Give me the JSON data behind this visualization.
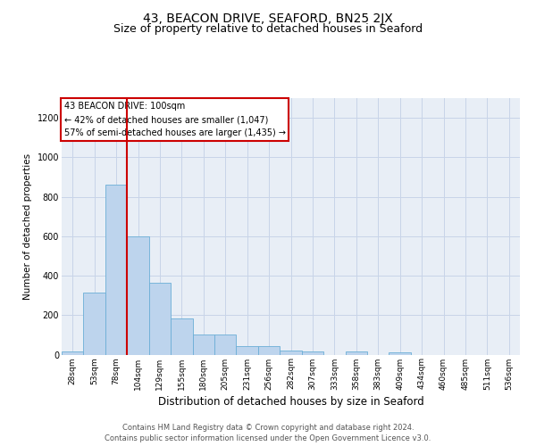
{
  "title1": "43, BEACON DRIVE, SEAFORD, BN25 2JX",
  "title2": "Size of property relative to detached houses in Seaford",
  "xlabel": "Distribution of detached houses by size in Seaford",
  "ylabel": "Number of detached properties",
  "categories": [
    "28sqm",
    "53sqm",
    "78sqm",
    "104sqm",
    "129sqm",
    "155sqm",
    "180sqm",
    "205sqm",
    "231sqm",
    "256sqm",
    "282sqm",
    "307sqm",
    "333sqm",
    "358sqm",
    "383sqm",
    "409sqm",
    "434sqm",
    "460sqm",
    "485sqm",
    "511sqm",
    "536sqm"
  ],
  "values": [
    15,
    315,
    860,
    600,
    365,
    185,
    100,
    100,
    45,
    45,
    20,
    15,
    0,
    15,
    0,
    10,
    0,
    0,
    0,
    0,
    0
  ],
  "bar_color": "#bdd4ed",
  "bar_edge_color": "#6baed6",
  "vline_x": 2.5,
  "vline_color": "#cc0000",
  "annotation_text": "43 BEACON DRIVE: 100sqm\n← 42% of detached houses are smaller (1,047)\n57% of semi-detached houses are larger (1,435) →",
  "annotation_box_edge_color": "#cc0000",
  "ylim": [
    0,
    1300
  ],
  "yticks": [
    0,
    200,
    400,
    600,
    800,
    1000,
    1200
  ],
  "grid_color": "#c8d4e8",
  "bg_color": "#e8eef6",
  "footer_line1": "Contains HM Land Registry data © Crown copyright and database right 2024.",
  "footer_line2": "Contains public sector information licensed under the Open Government Licence v3.0.",
  "title1_fontsize": 10,
  "title2_fontsize": 9,
  "xlabel_fontsize": 8.5,
  "ylabel_fontsize": 7.5,
  "tick_fontsize": 6.5,
  "annotation_fontsize": 7,
  "footer_fontsize": 6,
  "footer_color": "#555555"
}
